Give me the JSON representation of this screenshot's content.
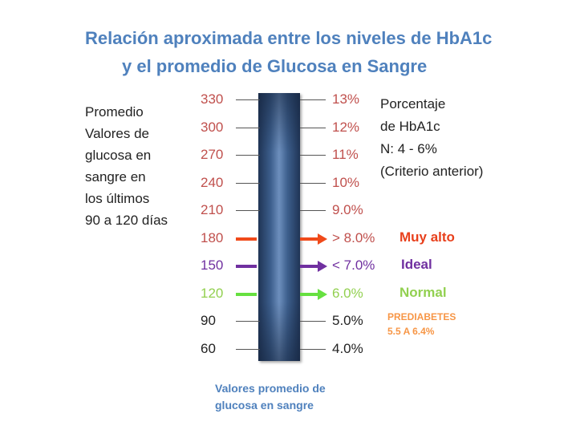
{
  "title": {
    "line1": "Relación aproximada entre los niveles de HbA1c",
    "line2": "y el promedio de Glucosa en Sangre"
  },
  "left_label": "Promedio\nValores de\nglucosa en\nsangre en\nlos últimos\n90 a 120  días",
  "right_label": "Porcentaje\nde HbA1c\nN: 4 - 6%\n(Criterio anterior)",
  "rows": [
    {
      "glucose": "330",
      "hba1c": "13%",
      "color": "#c0504d"
    },
    {
      "glucose": "300",
      "hba1c": "12%",
      "color": "#c0504d"
    },
    {
      "glucose": "270",
      "hba1c": "11%",
      "color": "#c0504d"
    },
    {
      "glucose": "240",
      "hba1c": "10%",
      "color": "#c0504d"
    },
    {
      "glucose": "210",
      "hba1c": "9.0%",
      "color": "#c0504d"
    },
    {
      "glucose": "180",
      "hba1c": "> 8.0%",
      "color": "#c0504d",
      "arrow_color": "#f04a1a",
      "category": "Muy alto",
      "category_color": "#e8401c"
    },
    {
      "glucose": "150",
      "hba1c": "< 7.0%",
      "color": "#7030a0",
      "arrow_color": "#7030a0",
      "category": "Ideal",
      "category_color": "#7030a0"
    },
    {
      "glucose": "120",
      "hba1c": "6.0%",
      "color": "#92d050",
      "arrow_color": "#66e040",
      "category": "Normal",
      "category_color": "#92d050"
    },
    {
      "glucose": "90",
      "hba1c": "5.0%",
      "color": "#222222"
    },
    {
      "glucose": "60",
      "hba1c": "4.0%",
      "color": "#222222"
    }
  ],
  "prediabetes": "PREDIABETES\n5.5 A 6.4%",
  "bottom_label": "Valores promedio de\n glucosa en sangre",
  "colors": {
    "title": "#4f81bd",
    "bar": "#3d5f8d",
    "prediabetes": "#f79646"
  }
}
